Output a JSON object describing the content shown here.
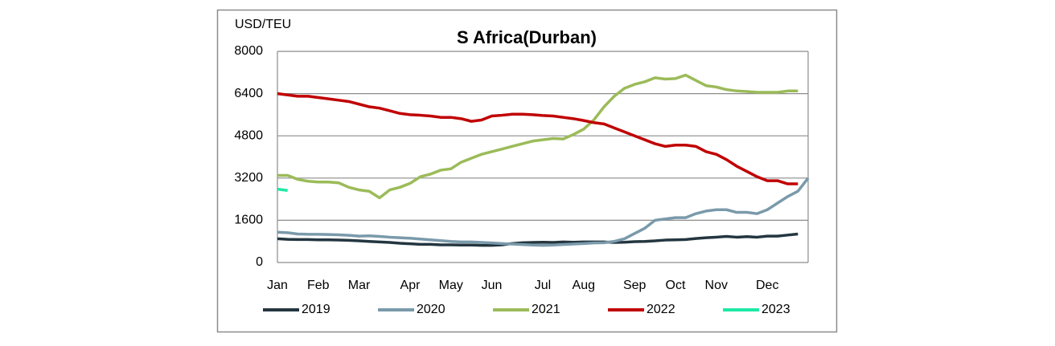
{
  "chart_data": {
    "type": "line",
    "title": "S Africa(Durban)",
    "y_label": "USD/TEU",
    "categories": [
      "Jan",
      null,
      null,
      null,
      "Feb",
      null,
      null,
      null,
      "Mar",
      null,
      null,
      null,
      null,
      "Apr",
      null,
      null,
      null,
      "May",
      null,
      null,
      null,
      "Jun",
      null,
      null,
      null,
      null,
      "Jul",
      null,
      null,
      null,
      "Aug",
      null,
      null,
      null,
      null,
      "Sep",
      null,
      null,
      null,
      "Oct",
      null,
      null,
      null,
      "Nov",
      null,
      null,
      null,
      null,
      "Dec",
      null,
      null,
      null,
      null
    ],
    "series": [
      {
        "name": "2019",
        "color": "#243640",
        "values": [
          900,
          880,
          870,
          870,
          860,
          860,
          850,
          840,
          820,
          800,
          780,
          760,
          730,
          710,
          690,
          690,
          670,
          670,
          660,
          660,
          650,
          650,
          670,
          720,
          750,
          760,
          770,
          760,
          780,
          770,
          780,
          780,
          780,
          760,
          770,
          790,
          800,
          820,
          850,
          860,
          870,
          910,
          940,
          960,
          990,
          960,
          980,
          960,
          1000,
          1000,
          1040,
          1080,
          null
        ]
      },
      {
        "name": "2020",
        "color": "#7a9aab",
        "values": [
          1150,
          1130,
          1080,
          1070,
          1070,
          1060,
          1050,
          1030,
          1000,
          1010,
          990,
          960,
          940,
          920,
          890,
          860,
          830,
          800,
          780,
          780,
          760,
          740,
          720,
          700,
          680,
          660,
          650,
          660,
          680,
          700,
          720,
          740,
          750,
          800,
          900,
          1100,
          1300,
          1600,
          1650,
          1700,
          1700,
          1850,
          1950,
          2000,
          2000,
          1900,
          1900,
          1850,
          2000,
          2250,
          2500,
          2700,
          3200
        ]
      },
      {
        "name": "2021",
        "color": "#9bbb59",
        "values": [
          3300,
          3300,
          3150,
          3080,
          3050,
          3050,
          3020,
          2850,
          2750,
          2700,
          2450,
          2750,
          2850,
          3000,
          3250,
          3350,
          3500,
          3550,
          3800,
          3950,
          4100,
          4200,
          4300,
          4400,
          4500,
          4600,
          4650,
          4700,
          4680,
          4850,
          5050,
          5400,
          5900,
          6300,
          6600,
          6750,
          6850,
          7000,
          6950,
          6970,
          7100,
          6900,
          6700,
          6650,
          6550,
          6500,
          6480,
          6450,
          6450,
          6450,
          6500,
          6500,
          null
        ]
      },
      {
        "name": "2022",
        "color": "#c00000",
        "values": [
          6400,
          6350,
          6300,
          6300,
          6250,
          6200,
          6150,
          6100,
          6000,
          5900,
          5850,
          5750,
          5650,
          5600,
          5580,
          5550,
          5500,
          5500,
          5450,
          5350,
          5400,
          5550,
          5580,
          5620,
          5620,
          5600,
          5570,
          5550,
          5500,
          5450,
          5380,
          5300,
          5250,
          5100,
          4950,
          4800,
          4650,
          4500,
          4400,
          4450,
          4450,
          4400,
          4200,
          4100,
          3900,
          3650,
          3450,
          3250,
          3100,
          3100,
          2980,
          2980,
          null
        ]
      },
      {
        "name": "2023",
        "color": "#1de9a6",
        "values": [
          2780,
          2730,
          null,
          null,
          null,
          null,
          null,
          null,
          null,
          null,
          null,
          null,
          null,
          null,
          null,
          null,
          null,
          null,
          null,
          null,
          null,
          null,
          null,
          null,
          null,
          null,
          null,
          null,
          null,
          null,
          null,
          null,
          null,
          null,
          null,
          null,
          null,
          null,
          null,
          null,
          null,
          null,
          null,
          null,
          null,
          null,
          null,
          null,
          null,
          null,
          null,
          null,
          null
        ]
      }
    ],
    "ylim": [
      0,
      8000
    ],
    "yticks": [
      0,
      1600,
      3200,
      4800,
      6400,
      8000
    ],
    "grid": true,
    "legend": "bottom"
  }
}
